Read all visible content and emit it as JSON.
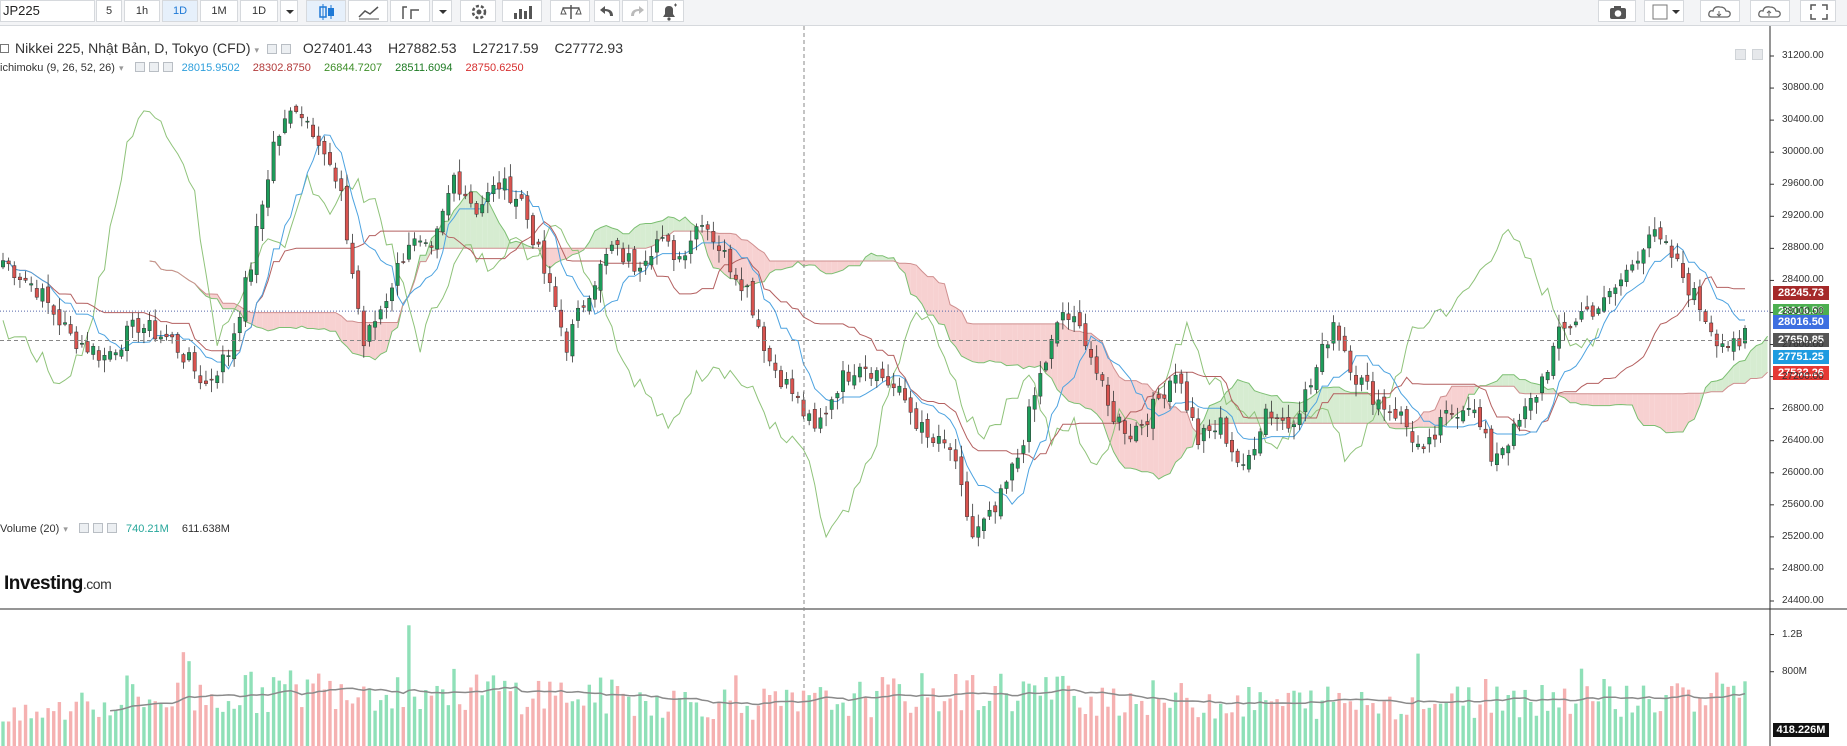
{
  "toolbar": {
    "symbol": "JP225",
    "intervals": [
      "5",
      "1h",
      "1D",
      "1M",
      "1D"
    ],
    "active_interval_index": 2
  },
  "legend": {
    "title": "Nikkei 225, Nhật Bản, D, Tokyo (CFD)",
    "open": "O27401.43",
    "high": "H27882.53",
    "low": "L27217.59",
    "close": "C27772.93",
    "ichimoku_name": "ichimoku (9, 26, 52, 26)",
    "ichimoku_values": [
      "28015.9502",
      "28302.8750",
      "26844.7207",
      "28511.6094",
      "28750.6250"
    ],
    "ichimoku_colors": [
      "#2e9fdc",
      "#b23a3a",
      "#3f8f2a",
      "#1c7a22",
      "#d62f2f"
    ],
    "volume_name": "Volume (20)",
    "volume_values": [
      "740.21M",
      "611.638M"
    ],
    "volume_colors": [
      "#26a69a",
      "#333333"
    ]
  },
  "price_tags": [
    {
      "label": "28245.73",
      "value": 28245.73,
      "color": "#a52a2a"
    },
    {
      "label": "28016.50",
      "value": 28016.5,
      "color": "#4caf50"
    },
    {
      "label": "28016.50",
      "value": 27880,
      "color": "#3d6fe0"
    },
    {
      "label": "27650.85",
      "value": 27650.85,
      "color": "#555555"
    },
    {
      "label": "27751.25",
      "value": 27440,
      "color": "#1e9be0"
    },
    {
      "label": "27532.26",
      "value": 27240,
      "color": "#e53935"
    }
  ],
  "volume_tag": {
    "label": "418.226M",
    "color": "#111111"
  },
  "logo": {
    "main": "Investing",
    "suffix": ".com"
  },
  "chart_data": {
    "type": "candlestick",
    "y_axis_ticks": [
      31200,
      30800,
      30400,
      30000,
      29600,
      29200,
      28800,
      28400,
      28000,
      27600,
      27200,
      26800,
      26400,
      26000,
      25600,
      25200,
      24800,
      24400
    ],
    "y_axis_labels": [
      "31200.00",
      "30800.00",
      "30400.00",
      "30000.00",
      "29600.00",
      "29200.00",
      "28800.00",
      "28400.00",
      "28000.00",
      "27600.00",
      "27200.00",
      "26800.00",
      "26400.00",
      "26000.00",
      "25600.00",
      "25200.00",
      "24800.00",
      "24400.00"
    ],
    "ylim": [
      24300,
      31400
    ],
    "volume_axis_ticks": [
      1200,
      800
    ],
    "volume_axis_labels": [
      "1.2B",
      "800M"
    ],
    "volume_ylim": [
      0,
      1400
    ],
    "close_anchors": [
      [
        0,
        28650
      ],
      [
        6,
        28300
      ],
      [
        12,
        27700
      ],
      [
        18,
        27450
      ],
      [
        24,
        27850
      ],
      [
        30,
        27650
      ],
      [
        36,
        27100
      ],
      [
        40,
        27500
      ],
      [
        44,
        28600
      ],
      [
        48,
        30100
      ],
      [
        52,
        30600
      ],
      [
        56,
        30200
      ],
      [
        60,
        29400
      ],
      [
        64,
        27600
      ],
      [
        68,
        28200
      ],
      [
        72,
        28900
      ],
      [
        76,
        28700
      ],
      [
        80,
        29700
      ],
      [
        84,
        29300
      ],
      [
        88,
        29600
      ],
      [
        92,
        29400
      ],
      [
        96,
        28500
      ],
      [
        100,
        27600
      ],
      [
        104,
        28300
      ],
      [
        108,
        28800
      ],
      [
        112,
        28600
      ],
      [
        116,
        28900
      ],
      [
        120,
        28700
      ],
      [
        124,
        29200
      ],
      [
        128,
        28700
      ],
      [
        132,
        28300
      ],
      [
        136,
        27400
      ],
      [
        140,
        27000
      ],
      [
        144,
        26500
      ],
      [
        148,
        27100
      ],
      [
        152,
        27400
      ],
      [
        156,
        27200
      ],
      [
        160,
        26900
      ],
      [
        164,
        26400
      ],
      [
        168,
        26300
      ],
      [
        172,
        25200
      ],
      [
        176,
        25500
      ],
      [
        180,
        26200
      ],
      [
        184,
        27200
      ],
      [
        188,
        28000
      ],
      [
        192,
        27700
      ],
      [
        196,
        26800
      ],
      [
        200,
        26500
      ],
      [
        204,
        26800
      ],
      [
        208,
        27300
      ],
      [
        212,
        26400
      ],
      [
        216,
        26600
      ],
      [
        220,
        26000
      ],
      [
        224,
        26800
      ],
      [
        228,
        26600
      ],
      [
        232,
        27100
      ],
      [
        236,
        27900
      ],
      [
        240,
        27200
      ],
      [
        244,
        26900
      ],
      [
        248,
        26700
      ],
      [
        252,
        26200
      ],
      [
        256,
        26700
      ],
      [
        260,
        26900
      ],
      [
        264,
        26200
      ],
      [
        268,
        26500
      ],
      [
        272,
        27000
      ],
      [
        276,
        27700
      ],
      [
        280,
        28000
      ],
      [
        284,
        28100
      ],
      [
        288,
        28500
      ],
      [
        292,
        29000
      ],
      [
        296,
        28700
      ],
      [
        300,
        28200
      ],
      [
        304,
        27700
      ],
      [
        308,
        27500
      ],
      [
        309,
        27773
      ]
    ],
    "volume_profile": [
      [
        0,
        300
      ],
      [
        20,
        520
      ],
      [
        40,
        600
      ],
      [
        60,
        700
      ],
      [
        80,
        650
      ],
      [
        100,
        600
      ],
      [
        120,
        520
      ],
      [
        140,
        480
      ],
      [
        160,
        600
      ],
      [
        180,
        640
      ],
      [
        200,
        560
      ],
      [
        220,
        500
      ],
      [
        240,
        520
      ],
      [
        260,
        520
      ],
      [
        280,
        600
      ],
      [
        300,
        520
      ],
      [
        309,
        740
      ]
    ],
    "series_styles": {
      "up_color": "#1d9c5a",
      "down_color": "#d9534f",
      "tenkan_color": "#4da3e0",
      "kijun_color": "#b46060",
      "chikou_color": "#8fc37a",
      "cloud_up": "#cfe9c9",
      "cloud_down": "#f6c9c9",
      "volume_up": "#8fe0b8",
      "volume_down": "#f5b1b1",
      "volume_ma_color": "#8a8a8a"
    },
    "grid": false
  }
}
